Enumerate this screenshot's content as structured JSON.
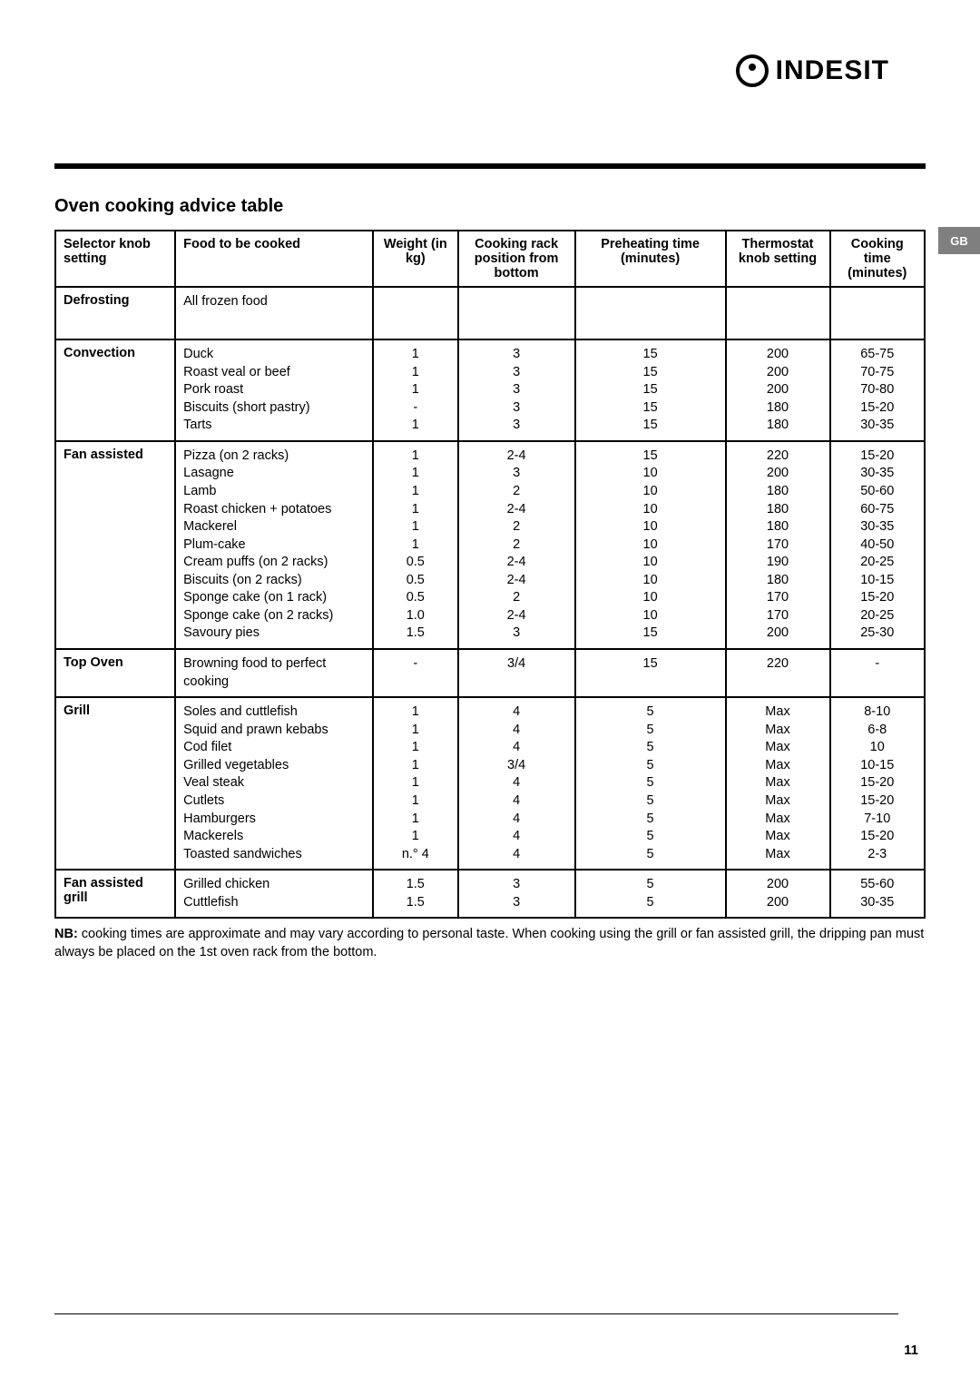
{
  "brand": {
    "text": "INDESIT"
  },
  "side_tab": "GB",
  "page_number": "11",
  "title": "Oven cooking advice table",
  "headers": {
    "selector": "Selector knob setting",
    "food": "Food to be cooked",
    "weight": "Weight (in kg)",
    "rack": "Cooking rack position from bottom",
    "preheat": "Preheating time (minutes)",
    "thermostat": "Thermostat knob setting",
    "time": "Cooking time (minutes)"
  },
  "rows": [
    {
      "mode": "Defrosting",
      "food": "All frozen food",
      "weight": "",
      "rack": "",
      "preheat": "",
      "thermostat": "",
      "time": ""
    },
    {
      "mode": "Convection",
      "food": "Duck\nRoast veal or beef\nPork roast\nBiscuits (short pastry)\nTarts",
      "weight": "1\n1\n1\n-\n1",
      "rack": "3\n3\n3\n3\n3",
      "preheat": "15\n15\n15\n15\n15",
      "thermostat": "200\n200\n200\n180\n180",
      "time": "65-75\n70-75\n70-80\n15-20\n30-35"
    },
    {
      "mode": "Fan assisted",
      "food": "Pizza (on 2 racks)\nLasagne\nLamb\nRoast chicken + potatoes\nMackerel\nPlum-cake\nCream puffs (on 2 racks)\nBiscuits (on 2 racks)\nSponge cake (on 1 rack)\nSponge cake (on 2 racks)\nSavoury pies",
      "weight": "1\n1\n1\n1\n1\n1\n0.5\n0.5\n0.5\n1.0\n1.5",
      "rack": "2-4\n3\n2\n2-4\n2\n2\n2-4\n2-4\n2\n2-4\n3",
      "preheat": "15\n10\n10\n10\n10\n10\n10\n10\n10\n10\n15",
      "thermostat": "220\n200\n180\n180\n180\n170\n190\n180\n170\n170\n200",
      "time": "15-20\n30-35\n50-60\n60-75\n30-35\n40-50\n20-25\n10-15\n15-20\n20-25\n25-30"
    },
    {
      "mode": "Top Oven",
      "food": "Browning food to perfect cooking",
      "weight": "-",
      "rack": "3/4",
      "preheat": "15",
      "thermostat": "220",
      "time": "-"
    },
    {
      "mode": "Grill",
      "food": "Soles and cuttlefish\nSquid and prawn kebabs\nCod filet\nGrilled vegetables\nVeal steak\nCutlets\nHamburgers\nMackerels\nToasted sandwiches",
      "weight": "1\n1\n1\n1\n1\n1\n1\n1\nn.° 4",
      "rack": "4\n4\n4\n3/4\n4\n4\n4\n4\n4",
      "preheat": "5\n5\n5\n5\n5\n5\n5\n5\n5",
      "thermostat": "Max\nMax\nMax\nMax\nMax\nMax\nMax\nMax\nMax",
      "time": "8-10\n6-8\n10\n10-15\n15-20\n15-20\n7-10\n15-20\n2-3"
    },
    {
      "mode": "Fan assisted grill",
      "food": "Grilled chicken\nCuttlefish",
      "weight": "1.5\n1.5",
      "rack": "3\n3",
      "preheat": "5\n5",
      "thermostat": "200\n200",
      "time": "55-60\n30-35"
    }
  ],
  "footnote_label": "NB:",
  "footnote_text": " cooking times are approximate and may vary according to personal taste.  When cooking using the grill or fan assisted grill, the dripping pan must always be placed on the 1st oven rack from the bottom."
}
